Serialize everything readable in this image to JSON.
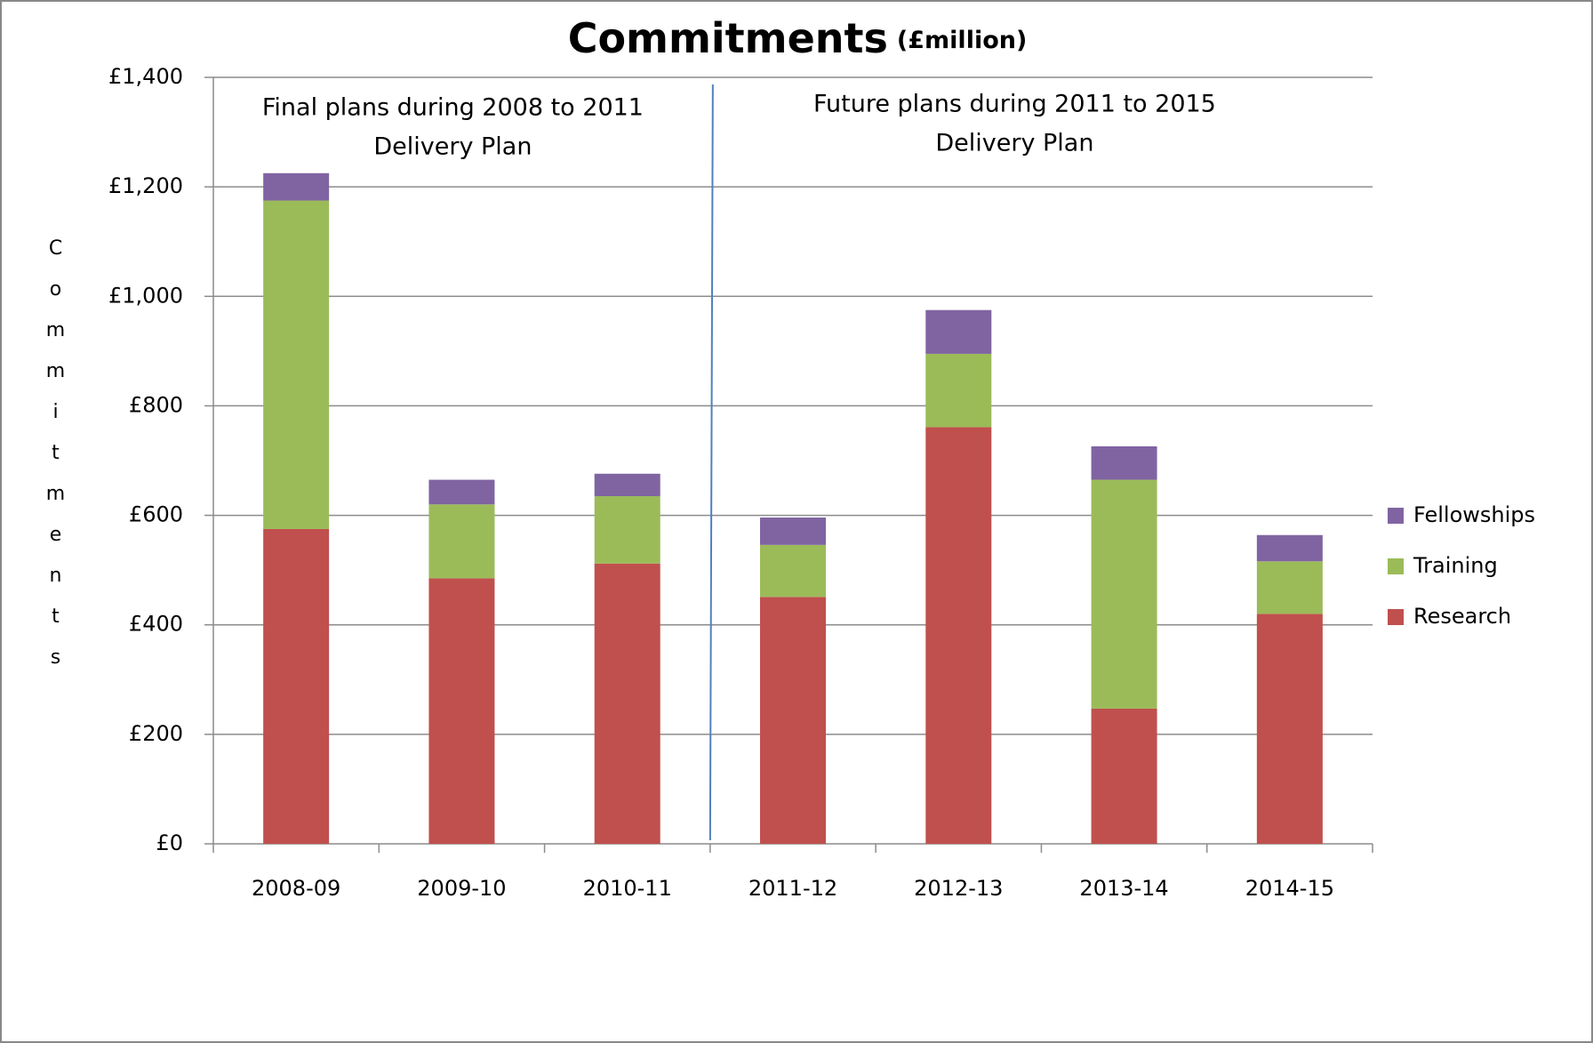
{
  "chart_data": {
    "type": "stacked-bar",
    "title": "Commitments",
    "subtitle": "(£million)",
    "y_label": "Commitments",
    "annotations": [
      {
        "lines": [
          "Final plans during 2008 to  2011",
          "Delivery Plan"
        ]
      },
      {
        "lines": [
          "Future plans during 2011  to  2015",
          "Delivery Plan"
        ]
      }
    ],
    "categories": [
      "2008-09",
      "2009-10",
      "2010-11",
      "2011-12",
      "2012-13",
      "2013-14",
      "2014-15"
    ],
    "series": [
      {
        "name": "Research",
        "color": "#c0504d",
        "values": [
          575,
          485,
          512,
          451,
          761,
          247,
          420
        ]
      },
      {
        "name": "Training",
        "color": "#9bbb59",
        "values": [
          600,
          135,
          123,
          95,
          134,
          418,
          96
        ]
      },
      {
        "name": "Fellowships",
        "color": "#8064a2",
        "values": [
          50,
          45,
          41,
          50,
          80,
          61,
          48
        ]
      }
    ],
    "ylim": [
      0,
      1400
    ],
    "yticks": [
      {
        "value": 0,
        "label": "£0"
      },
      {
        "value": 200,
        "label": "£200"
      },
      {
        "value": 400,
        "label": "£400"
      },
      {
        "value": 600,
        "label": "£600"
      },
      {
        "value": 800,
        "label": "£800"
      },
      {
        "value": 1000,
        "label": "£1,000"
      },
      {
        "value": 1200,
        "label": "£1,200"
      },
      {
        "value": 1400,
        "label": "£1,400"
      }
    ],
    "grid": true,
    "legend": "right"
  }
}
